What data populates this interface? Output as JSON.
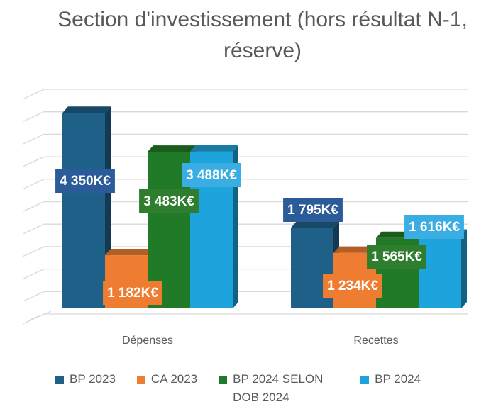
{
  "chart_data": {
    "type": "bar3d",
    "title": "Section d'investissement (hors résultat N-1, réserve)",
    "categories": [
      "Dépenses",
      "Recettes"
    ],
    "series": [
      {
        "name": "BP 2023",
        "color": "#1f6088",
        "label_color": "#2b5c99",
        "values": [
          4350,
          1795
        ],
        "value_labels": [
          "4 350K€",
          "1 795K€"
        ]
      },
      {
        "name": "CA 2023",
        "color": "#ee7d31",
        "label_color": "#ee7d31",
        "values": [
          1182,
          1234
        ],
        "value_labels": [
          "1 182K€",
          "1 234K€"
        ]
      },
      {
        "name": "BP 2024 SELON DOB 2024",
        "color": "#217a27",
        "label_color": "#2f7d2f",
        "values": [
          3483,
          1565
        ],
        "value_labels": [
          "3 483K€",
          "1 565K€"
        ]
      },
      {
        "name": "BP 2024",
        "color": "#1ea4dc",
        "label_color": "#3aaee2",
        "values": [
          3488,
          1616
        ],
        "value_labels": [
          "3 488K€",
          "1 616K€"
        ]
      }
    ],
    "ylim": [
      0,
      5000
    ],
    "yticks": [
      0,
      500,
      1000,
      1500,
      2000,
      2500,
      3000,
      3500,
      4000,
      4500,
      5000
    ],
    "grid": true
  }
}
